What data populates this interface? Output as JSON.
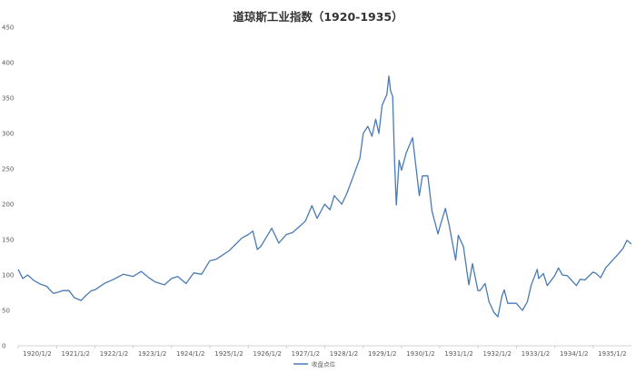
{
  "chart_data": {
    "type": "line",
    "title": "道琼斯工业指数（1920-1935）",
    "xlabel": "",
    "ylabel": "",
    "ylim": [
      0,
      450
    ],
    "xlim": [
      "1920-01-02",
      "1936-01-02"
    ],
    "grid": {
      "x": false,
      "y": false
    },
    "legend_position": "bottom",
    "y_ticks": [
      0,
      50,
      100,
      150,
      200,
      250,
      300,
      350,
      400,
      450
    ],
    "x_ticks": [
      "1920/1/2",
      "1921/1/2",
      "1922/1/2",
      "1923/1/2",
      "1924/1/2",
      "1925/1/2",
      "1926/1/2",
      "1927/1/2",
      "1928/1/2",
      "1929/1/2",
      "1930/1/2",
      "1931/1/2",
      "1932/1/2",
      "1933/1/2",
      "1934/1/2",
      "1935/1/2"
    ],
    "series": [
      {
        "name": "收盘点位",
        "color": "#4a7ab5",
        "points": [
          [
            "1920-01-02",
            108
          ],
          [
            "1920-02-15",
            95
          ],
          [
            "1920-04-01",
            100
          ],
          [
            "1920-06-01",
            92
          ],
          [
            "1920-08-01",
            87
          ],
          [
            "1920-10-01",
            84
          ],
          [
            "1920-12-01",
            74
          ],
          [
            "1921-01-02",
            75
          ],
          [
            "1921-03-01",
            78
          ],
          [
            "1921-05-01",
            78
          ],
          [
            "1921-06-20",
            68
          ],
          [
            "1921-08-24",
            64
          ],
          [
            "1921-10-01",
            70
          ],
          [
            "1921-12-01",
            78
          ],
          [
            "1922-01-02",
            79
          ],
          [
            "1922-04-01",
            88
          ],
          [
            "1922-07-01",
            94
          ],
          [
            "1922-10-01",
            101
          ],
          [
            "1923-01-02",
            98
          ],
          [
            "1923-03-20",
            105
          ],
          [
            "1923-06-01",
            96
          ],
          [
            "1923-08-01",
            90
          ],
          [
            "1923-10-27",
            86
          ],
          [
            "1924-01-02",
            95
          ],
          [
            "1924-03-01",
            98
          ],
          [
            "1924-05-20",
            88
          ],
          [
            "1924-08-01",
            103
          ],
          [
            "1924-10-15",
            101
          ],
          [
            "1924-12-31",
            120
          ],
          [
            "1925-03-01",
            122
          ],
          [
            "1925-05-01",
            128
          ],
          [
            "1925-07-01",
            134
          ],
          [
            "1925-09-01",
            143
          ],
          [
            "1925-11-01",
            152
          ],
          [
            "1926-01-02",
            157
          ],
          [
            "1926-02-15",
            162
          ],
          [
            "1926-03-30",
            136
          ],
          [
            "1926-05-01",
            140
          ],
          [
            "1926-08-14",
            166
          ],
          [
            "1926-10-20",
            145
          ],
          [
            "1926-12-31",
            157
          ],
          [
            "1927-03-01",
            160
          ],
          [
            "1927-05-01",
            168
          ],
          [
            "1927-07-01",
            176
          ],
          [
            "1927-09-01",
            198
          ],
          [
            "1927-10-20",
            180
          ],
          [
            "1927-12-31",
            200
          ],
          [
            "1928-02-20",
            192
          ],
          [
            "1928-04-01",
            212
          ],
          [
            "1928-06-12",
            200
          ],
          [
            "1928-08-01",
            216
          ],
          [
            "1928-10-01",
            240
          ],
          [
            "1928-12-01",
            265
          ],
          [
            "1929-01-02",
            300
          ],
          [
            "1929-02-15",
            310
          ],
          [
            "1929-03-26",
            296
          ],
          [
            "1929-05-01",
            320
          ],
          [
            "1929-05-31",
            300
          ],
          [
            "1929-07-01",
            340
          ],
          [
            "1929-08-15",
            355
          ],
          [
            "1929-09-03",
            381
          ],
          [
            "1929-09-20",
            360
          ],
          [
            "1929-10-10",
            352
          ],
          [
            "1929-10-28",
            260
          ],
          [
            "1929-11-13",
            199
          ],
          [
            "1929-12-10",
            262
          ],
          [
            "1930-01-02",
            248
          ],
          [
            "1930-02-15",
            272
          ],
          [
            "1930-04-17",
            294
          ],
          [
            "1930-05-10",
            265
          ],
          [
            "1930-06-20",
            212
          ],
          [
            "1930-07-20",
            240
          ],
          [
            "1930-09-10",
            240
          ],
          [
            "1930-10-20",
            190
          ],
          [
            "1930-12-16",
            158
          ],
          [
            "1931-01-02",
            168
          ],
          [
            "1931-02-24",
            194
          ],
          [
            "1931-04-01",
            170
          ],
          [
            "1931-06-02",
            121
          ],
          [
            "1931-06-27",
            156
          ],
          [
            "1931-08-15",
            140
          ],
          [
            "1931-10-05",
            86
          ],
          [
            "1931-11-09",
            116
          ],
          [
            "1931-12-31",
            78
          ],
          [
            "1932-01-20",
            78
          ],
          [
            "1932-03-08",
            88
          ],
          [
            "1932-04-15",
            62
          ],
          [
            "1932-06-01",
            47
          ],
          [
            "1932-07-08",
            41
          ],
          [
            "1932-08-15",
            70
          ],
          [
            "1932-09-07",
            79
          ],
          [
            "1932-10-10",
            60
          ],
          [
            "1932-12-31",
            60
          ],
          [
            "1933-02-27",
            50
          ],
          [
            "1933-04-15",
            62
          ],
          [
            "1933-05-20",
            85
          ],
          [
            "1933-07-18",
            108
          ],
          [
            "1933-08-01",
            95
          ],
          [
            "1933-09-15",
            102
          ],
          [
            "1933-10-21",
            85
          ],
          [
            "1933-12-31",
            99
          ],
          [
            "1934-02-05",
            110
          ],
          [
            "1934-03-15",
            100
          ],
          [
            "1934-05-01",
            99
          ],
          [
            "1934-07-26",
            85
          ],
          [
            "1934-09-01",
            94
          ],
          [
            "1934-10-15",
            93
          ],
          [
            "1934-12-31",
            104
          ],
          [
            "1935-02-01",
            102
          ],
          [
            "1935-03-14",
            96
          ],
          [
            "1935-05-01",
            110
          ],
          [
            "1935-07-01",
            120
          ],
          [
            "1935-09-01",
            130
          ],
          [
            "1935-10-15",
            138
          ],
          [
            "1935-11-20",
            149
          ],
          [
            "1935-12-31",
            144
          ]
        ]
      }
    ]
  }
}
